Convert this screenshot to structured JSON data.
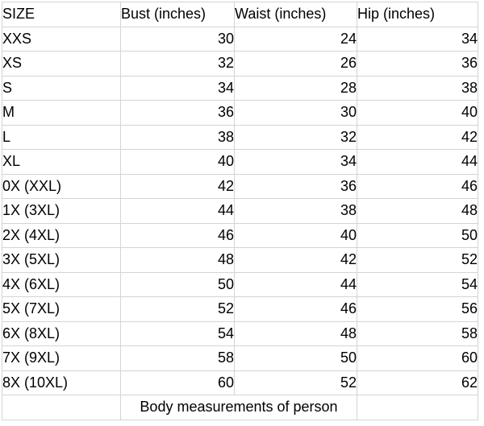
{
  "table": {
    "headers": [
      "SIZE",
      "Bust (inches)",
      "Waist (inches)",
      "Hip (inches)"
    ],
    "rows": [
      {
        "size": "XXS",
        "bust": 30,
        "waist": 24,
        "hip": 34
      },
      {
        "size": "XS",
        "bust": 32,
        "waist": 26,
        "hip": 36
      },
      {
        "size": "S",
        "bust": 34,
        "waist": 28,
        "hip": 38
      },
      {
        "size": "M",
        "bust": 36,
        "waist": 30,
        "hip": 40
      },
      {
        "size": "L",
        "bust": 38,
        "waist": 32,
        "hip": 42
      },
      {
        "size": "XL",
        "bust": 40,
        "waist": 34,
        "hip": 44
      },
      {
        "size": "0X (XXL)",
        "bust": 42,
        "waist": 36,
        "hip": 46
      },
      {
        "size": "1X (3XL)",
        "bust": 44,
        "waist": 38,
        "hip": 48
      },
      {
        "size": "2X (4XL)",
        "bust": 46,
        "waist": 40,
        "hip": 50
      },
      {
        "size": "3X (5XL)",
        "bust": 48,
        "waist": 42,
        "hip": 52
      },
      {
        "size": "4X (6XL)",
        "bust": 50,
        "waist": 44,
        "hip": 54
      },
      {
        "size": "5X (7XL)",
        "bust": 52,
        "waist": 46,
        "hip": 56
      },
      {
        "size": "6X (8XL)",
        "bust": 54,
        "waist": 48,
        "hip": 58
      },
      {
        "size": "7X (9XL)",
        "bust": 58,
        "waist": 50,
        "hip": 60
      },
      {
        "size": "8X (10XL)",
        "bust": 60,
        "waist": 52,
        "hip": 62
      }
    ],
    "footer_label": "Body measurements of person"
  },
  "colors": {
    "background": "#ffffff",
    "text": "#000000",
    "grid_border": "#d4d4d4",
    "outer_border": "#b7b7b7"
  }
}
